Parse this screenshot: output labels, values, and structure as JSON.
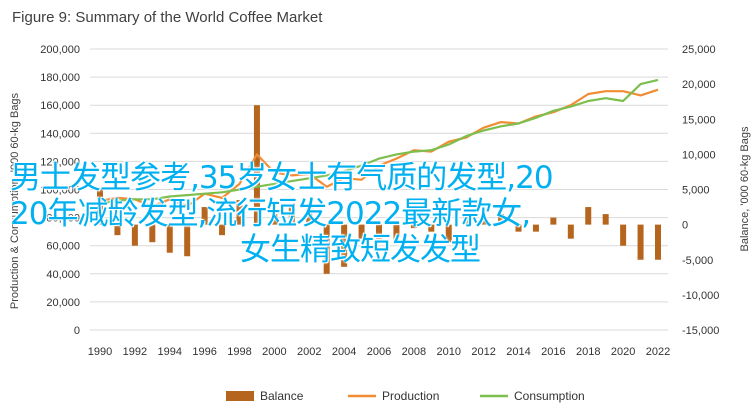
{
  "figure": {
    "title": "Figure 9: Summary of the World Coffee Market"
  },
  "overlay_text": {
    "line1": "男士发型参考,35岁女士有气质的发型,20",
    "line2": "20年减龄发型,流行短发2022最新款女,",
    "line3": "女生精致短发发型"
  },
  "colors": {
    "balance": "#b5651d",
    "production": "#f28c33",
    "consumption": "#7cbf4e",
    "grid": "#d9d9d9",
    "overlay_text": "#00b0f0"
  },
  "chart_data": {
    "type": "bar+line",
    "x": [
      1990,
      1991,
      1992,
      1993,
      1994,
      1995,
      1996,
      1997,
      1998,
      1999,
      2000,
      2001,
      2002,
      2003,
      2004,
      2005,
      2006,
      2007,
      2008,
      2009,
      2010,
      2011,
      2012,
      2013,
      2014,
      2015,
      2016,
      2017,
      2018,
      2019,
      2020,
      2021,
      2022
    ],
    "x_ticks": [
      "1990",
      "1992",
      "1994",
      "1996",
      "1998",
      "2000",
      "2002",
      "2004",
      "2006",
      "2008",
      "2010",
      "2012",
      "2014",
      "2016",
      "2018",
      "2020",
      "2022"
    ],
    "left_axis": {
      "label": "Production & Consumption, '000 60-kg Bags",
      "ylim": [
        0,
        200000
      ],
      "ticks": [
        "0",
        "20,000",
        "40,000",
        "60,000",
        "80,000",
        "100,000",
        "120,000",
        "140,000",
        "160,000",
        "180,000",
        "200,000"
      ]
    },
    "right_axis": {
      "label": "Balance, '000 60-kg Bags",
      "ylim": [
        -15000,
        25000
      ],
      "ticks": [
        "-15,000",
        "-10,000",
        "-5,000",
        "0",
        "5,000",
        "10,000",
        "15,000",
        "20,000",
        "25,000"
      ]
    },
    "series": [
      {
        "name": "Balance",
        "kind": "bar",
        "axis": "right",
        "values": [
          5000,
          -1500,
          -3000,
          -2500,
          -4000,
          -4500,
          2500,
          -1500,
          3500,
          17000,
          1500,
          3000,
          2500,
          -7000,
          -6000,
          -2000,
          -2000,
          -2500,
          -500,
          -1000,
          -2500,
          1500,
          1000,
          1500,
          -1000,
          -1000,
          1000,
          -2000,
          2500,
          1500,
          -3000,
          -5000,
          -5000
        ]
      },
      {
        "name": "Production",
        "kind": "line",
        "axis": "left",
        "values": [
          92000,
          94000,
          93000,
          88000,
          93000,
          88000,
          97000,
          94000,
          104000,
          125000,
          112000,
          110000,
          111000,
          102000,
          108000,
          107000,
          117000,
          122000,
          128000,
          127000,
          134000,
          137000,
          144000,
          148000,
          147000,
          152000,
          155000,
          160000,
          168000,
          170000,
          170000,
          167000,
          171000
        ]
      },
      {
        "name": "Consumption",
        "kind": "line",
        "axis": "left",
        "values": [
          90000,
          92000,
          93000,
          93000,
          95000,
          96000,
          97000,
          98000,
          100000,
          102000,
          104000,
          106000,
          108000,
          110000,
          113000,
          117000,
          122000,
          125000,
          127000,
          128000,
          132000,
          138000,
          142000,
          145000,
          147000,
          151000,
          156000,
          159000,
          163000,
          165000,
          163000,
          175000,
          178000
        ]
      }
    ],
    "legend": [
      "Balance",
      "Production",
      "Consumption"
    ],
    "legend_position": "bottom",
    "grid": true
  }
}
